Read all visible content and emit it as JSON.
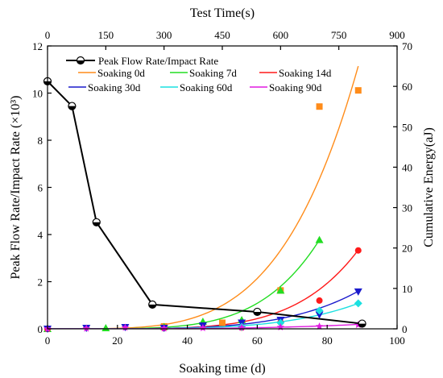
{
  "chart_data": {
    "type": "line",
    "title": "",
    "axes": {
      "bottom": {
        "label": "Soaking time (d)",
        "range": [
          0,
          100
        ],
        "ticks": [
          0,
          20,
          40,
          60,
          80,
          100
        ]
      },
      "top": {
        "label": "Test Time(s)",
        "range": [
          0,
          900
        ],
        "ticks": [
          0,
          150,
          300,
          450,
          600,
          750,
          900
        ]
      },
      "left": {
        "label": "Peak Flow Rate/Impact Rate (×10³)",
        "range": [
          0,
          12
        ],
        "ticks": [
          0,
          2,
          4,
          6,
          8,
          10,
          12
        ]
      },
      "right": {
        "label": "Cumulative Energy(aJ)",
        "range": [
          0,
          70
        ],
        "ticks": [
          0,
          10,
          20,
          30,
          40,
          50,
          60,
          70
        ]
      }
    },
    "grid": false,
    "legend_placement": "top-left",
    "series": [
      {
        "name": "Peak Flow Rate/Impact Rate",
        "axis": "bottom-left",
        "style": "line-marker",
        "color": "#000000",
        "x": [
          0,
          7,
          14,
          30,
          60,
          90
        ],
        "y": [
          10.5,
          9.45,
          4.52,
          1.03,
          0.72,
          0.22
        ]
      },
      {
        "name": "Soaking 0d",
        "axis": "top-right",
        "color": "#ff8c1a",
        "marker": "square",
        "curve": {
          "x_end": 800,
          "y_end": 65,
          "power": 4.2
        },
        "points": {
          "x": [
            300,
            450,
            600,
            700,
            800
          ],
          "y": [
            0.6,
            1.5,
            9.5,
            55,
            59
          ]
        }
      },
      {
        "name": "Soaking 7d",
        "axis": "top-right",
        "color": "#22dd22",
        "marker": "triangle-up",
        "curve": {
          "x_end": 700,
          "y_end": 22,
          "power": 4.8
        },
        "points": {
          "x": [
            0,
            150,
            300,
            400,
            500,
            600,
            700
          ],
          "y": [
            0,
            0.2,
            0.5,
            1.8,
            2.2,
            9.5,
            22
          ]
        }
      },
      {
        "name": "Soaking 14d",
        "axis": "top-right",
        "color": "#ff1a1a",
        "marker": "circle",
        "curve": {
          "x_end": 800,
          "y_end": 19.5,
          "power": 5.2
        },
        "points": {
          "x": [
            0,
            300,
            500,
            600,
            700,
            800
          ],
          "y": [
            0,
            0.2,
            0.3,
            1.6,
            7,
            19.4
          ]
        }
      },
      {
        "name": "Soaking 30d",
        "axis": "top-right",
        "color": "#1a1acc",
        "marker": "triangle-down",
        "curve": {
          "x_end": 800,
          "y_end": 9.3,
          "power": 4.5
        },
        "points": {
          "x": [
            0,
            100,
            200,
            300,
            400,
            500,
            600,
            700,
            800
          ],
          "y": [
            0,
            0.2,
            0.4,
            0.2,
            0.8,
            1.5,
            2.2,
            3.5,
            9.2
          ]
        }
      },
      {
        "name": "Soaking 60d",
        "axis": "top-right",
        "color": "#1ae0e0",
        "marker": "diamond",
        "curve": {
          "x_end": 800,
          "y_end": 6.3,
          "power": 4.5
        },
        "points": {
          "x": [
            500,
            600,
            700,
            800
          ],
          "y": [
            0.5,
            1.5,
            4.5,
            6.3
          ]
        }
      },
      {
        "name": "Soaking 90d",
        "axis": "top-right",
        "color": "#e01ae0",
        "marker": "star",
        "curve": {
          "x_end": 800,
          "y_end": 1.1,
          "power": 3.5
        },
        "points": {
          "x": [
            0,
            100,
            200,
            300,
            400,
            500,
            600,
            700,
            800
          ],
          "y": [
            0,
            0.1,
            0.3,
            0.1,
            0.2,
            0.3,
            0.4,
            0.6,
            1.0
          ]
        }
      }
    ]
  }
}
